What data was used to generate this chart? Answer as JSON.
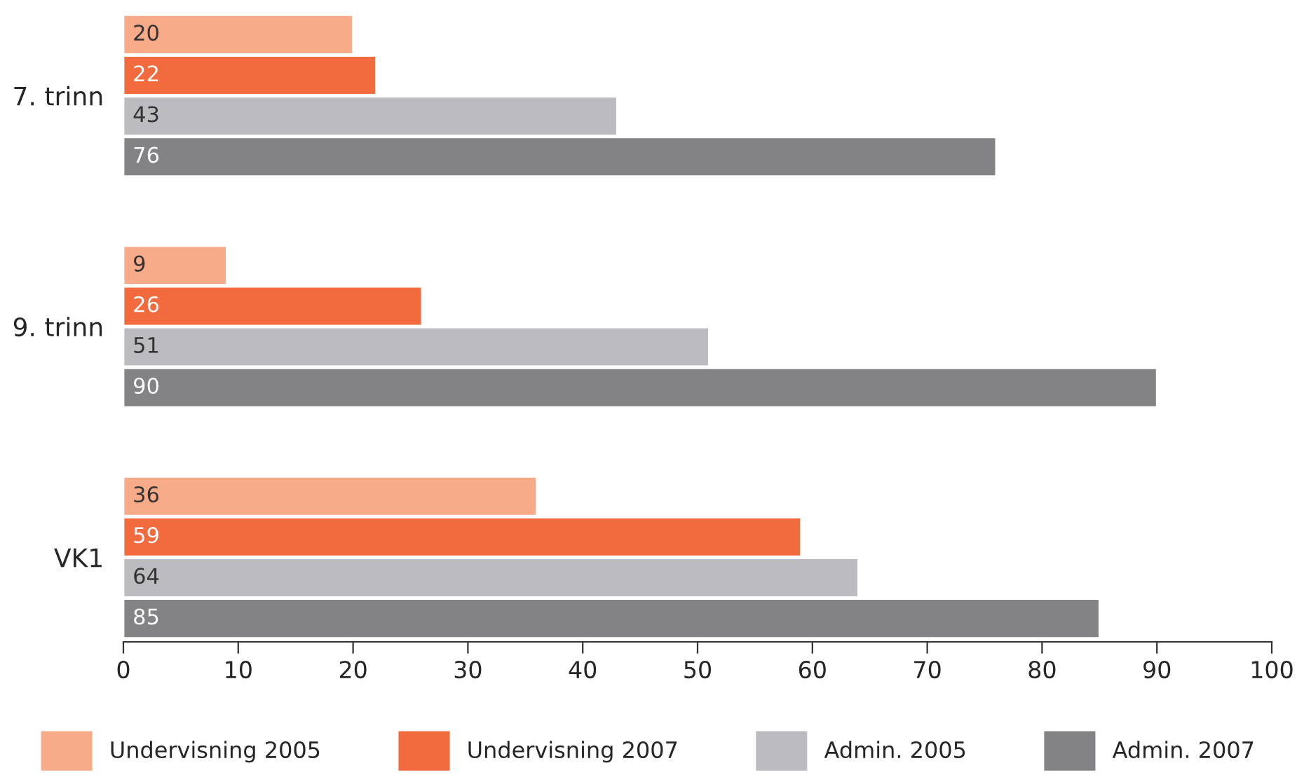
{
  "chart_data": {
    "type": "bar",
    "orientation": "horizontal",
    "categories": [
      "7. trinn",
      "9. trinn",
      "VK1"
    ],
    "series": [
      {
        "name": "Undervisning 2005",
        "color": "#f7ab88",
        "values": [
          20,
          9,
          36
        ]
      },
      {
        "name": "Undervisning 2007",
        "color": "#f26b3f",
        "values": [
          22,
          26,
          59
        ]
      },
      {
        "name": "Admin. 2005",
        "color": "#bcbcc0",
        "values": [
          43,
          51,
          64
        ]
      },
      {
        "name": "Admin. 2007",
        "color": "#838386",
        "values": [
          76,
          90,
          85
        ]
      }
    ],
    "xlim": [
      0,
      100
    ],
    "xticks": [
      0,
      10,
      20,
      30,
      40,
      50,
      60,
      70,
      80,
      90,
      100
    ],
    "grid": false,
    "legend": "bottom",
    "data_labels": true
  }
}
